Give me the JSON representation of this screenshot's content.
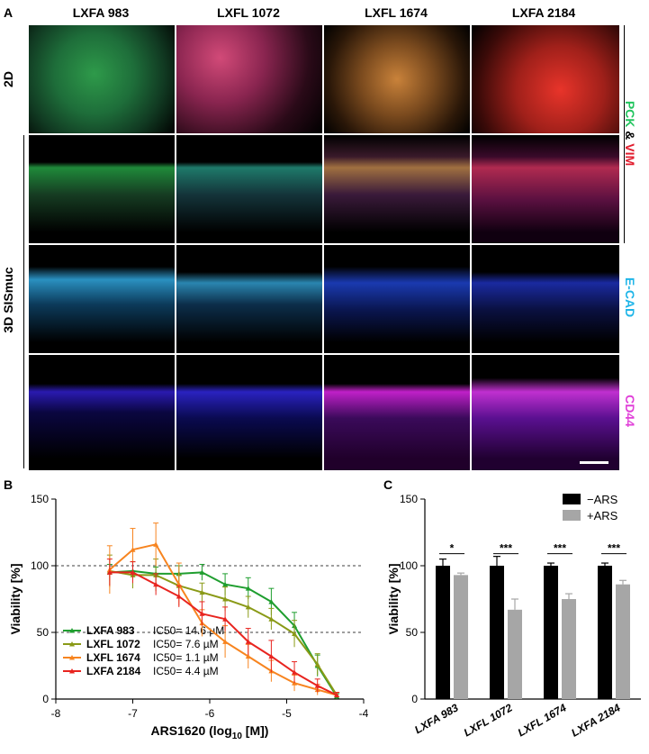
{
  "panelA": {
    "letter": "A",
    "columns": [
      "LXFA 983",
      "LXFL 1072",
      "LXFL 1674",
      "LXFA 2184"
    ],
    "row_2d": "2D",
    "row_3d": "3D SISmuc",
    "stain_pck_vim": {
      "pck": "PCK",
      "amp": " & ",
      "vim": "VIM"
    },
    "stain_ecad": "E-CAD",
    "stain_cd44": "CD44",
    "colors": {
      "pck": "#22c55e",
      "vim": "#e11d2e",
      "ecad": "#1fb5e8",
      "cd44": "#e040d8"
    }
  },
  "panelB": {
    "letter": "B",
    "chart_data": {
      "type": "line",
      "xlabel": "ARS1620 (log10 [M])",
      "ylabel": "Viability [%]",
      "xlim": [
        -8,
        -4
      ],
      "ylim": [
        0,
        150
      ],
      "xticks": [
        "-8",
        "-7",
        "-6",
        "-5",
        "-4"
      ],
      "yticks": [
        "0",
        "50",
        "100",
        "150"
      ],
      "reference_lines": [
        100,
        50
      ],
      "series": [
        {
          "name": "LXFA 983",
          "ic50": "IC50= 14.6 µM",
          "color": "#1f9e2f",
          "x": [
            -7.3,
            -7.0,
            -6.7,
            -6.4,
            -6.1,
            -5.8,
            -5.5,
            -5.2,
            -4.9,
            -4.6,
            -4.35
          ],
          "y": [
            95,
            96,
            94,
            94,
            95,
            86,
            83,
            73,
            55,
            25,
            2
          ],
          "err": [
            6,
            7,
            5,
            6,
            6,
            8,
            8,
            10,
            10,
            8,
            2
          ]
        },
        {
          "name": "LXFL 1072",
          "ic50": "IC50= 7.6 µM",
          "color": "#8a9a17",
          "x": [
            -7.3,
            -7.0,
            -6.7,
            -6.4,
            -6.1,
            -5.8,
            -5.5,
            -5.2,
            -4.9,
            -4.6,
            -4.35
          ],
          "y": [
            96,
            93,
            93,
            85,
            80,
            75,
            69,
            60,
            49,
            26,
            3
          ],
          "err": [
            12,
            10,
            12,
            8,
            7,
            9,
            8,
            8,
            10,
            8,
            2
          ]
        },
        {
          "name": "LXFL 1674",
          "ic50": "IC50= 1.1 µM",
          "color": "#f7841f",
          "x": [
            -7.3,
            -7.0,
            -6.7,
            -6.4,
            -6.1,
            -5.8,
            -5.5,
            -5.2,
            -4.9,
            -4.6,
            -4.35
          ],
          "y": [
            97,
            112,
            116,
            86,
            57,
            43,
            32,
            21,
            12,
            7,
            3
          ],
          "err": [
            18,
            16,
            16,
            16,
            10,
            12,
            9,
            8,
            6,
            4,
            2
          ]
        },
        {
          "name": "LXFA 2184",
          "ic50": "IC50= 4.4 µM",
          "color": "#e8241f",
          "x": [
            -7.3,
            -7.0,
            -6.7,
            -6.4,
            -6.1,
            -5.8,
            -5.5,
            -5.2,
            -4.9,
            -4.6,
            -4.35
          ],
          "y": [
            95,
            95,
            86,
            77,
            64,
            60,
            43,
            32,
            20,
            10,
            3
          ],
          "err": [
            10,
            8,
            8,
            8,
            9,
            9,
            10,
            12,
            8,
            5,
            2
          ]
        }
      ]
    }
  },
  "panelC": {
    "letter": "C",
    "chart_data": {
      "type": "bar",
      "ylabel": "Viability [%]",
      "ylim": [
        0,
        150
      ],
      "yticks": [
        "0",
        "50",
        "100",
        "150"
      ],
      "categories": [
        "LXFA 983",
        "LXFL 1072",
        "LXFL 1674",
        "LXFA 2184"
      ],
      "series": [
        {
          "name": "−ARS",
          "color": "#000000",
          "values": [
            100,
            100,
            100,
            100
          ],
          "err": [
            5,
            7,
            2,
            2
          ]
        },
        {
          "name": "+ARS",
          "color": "#a6a6a6",
          "values": [
            93,
            67,
            75,
            86
          ],
          "err": [
            1.5,
            8,
            4,
            3
          ]
        }
      ],
      "significance": [
        "*",
        "***",
        "***",
        "***"
      ]
    }
  }
}
